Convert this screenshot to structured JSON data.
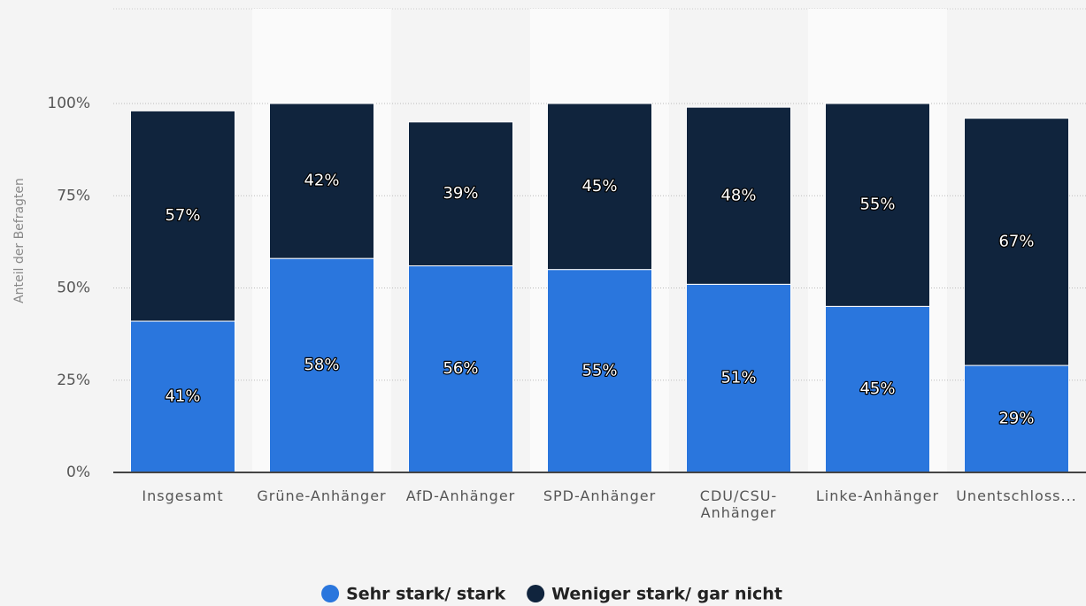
{
  "chart_data": {
    "type": "stacked_bar",
    "y_label": "Anteil der Befragten",
    "categories": [
      "Insgesamt",
      "Grüne-Anhänger",
      "AfD-Anhänger",
      "SPD-Anhänger",
      "CDU/CSU-Anhänger",
      "Linke-Anhänger",
      "Unentschloss..."
    ],
    "series": [
      {
        "name": "Sehr stark/ stark",
        "color": "#2a76dd",
        "values": [
          41,
          58,
          56,
          55,
          51,
          45,
          29
        ],
        "value_labels": [
          "41%",
          "58%",
          "56%",
          "55%",
          "51%",
          "45%",
          "29%"
        ]
      },
      {
        "name": "Weniger stark/ gar nicht",
        "color": "#10243d",
        "values": [
          57,
          42,
          39,
          45,
          48,
          55,
          67
        ],
        "value_labels": [
          "57%",
          "42%",
          "39%",
          "45%",
          "48%",
          "55%",
          "67%"
        ]
      }
    ],
    "ylim": [
      0,
      125
    ],
    "yticks": [
      {
        "value": 0,
        "label": "0%"
      },
      {
        "value": 25,
        "label": "25%"
      },
      {
        "value": 50,
        "label": "50%"
      },
      {
        "value": 75,
        "label": "75%"
      },
      {
        "value": 100,
        "label": "100%"
      }
    ],
    "grid": true,
    "legend": "bottom"
  }
}
